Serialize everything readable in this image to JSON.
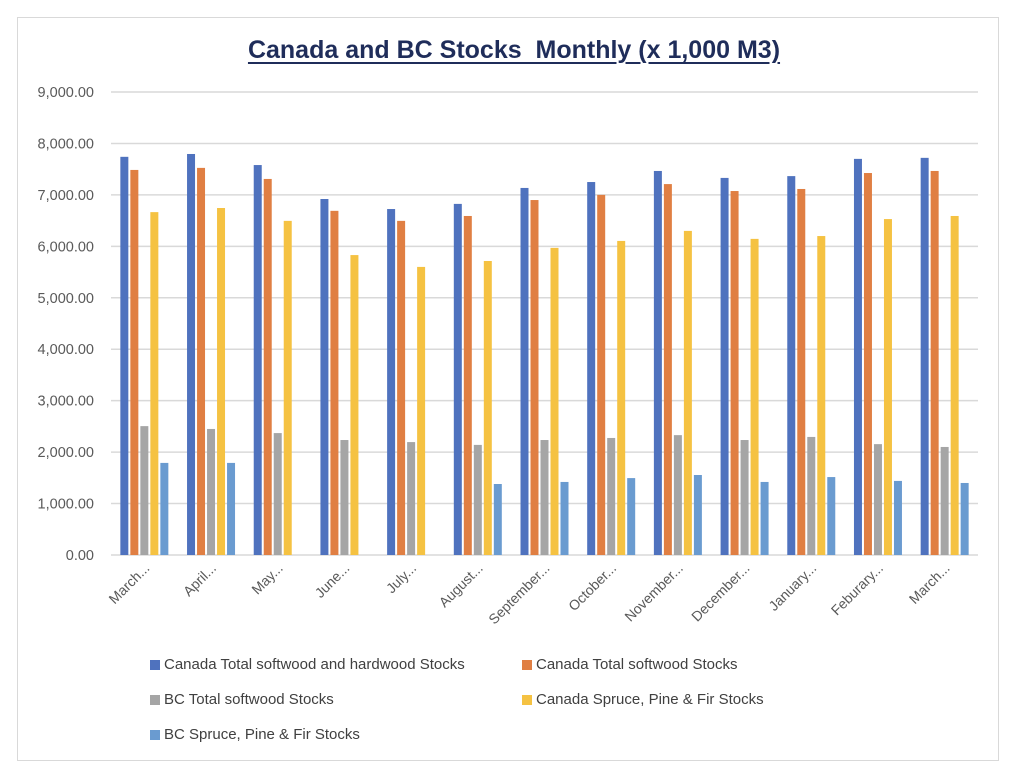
{
  "chart_data": {
    "type": "bar",
    "title": "Canada and BC Stocks  Monthly (x 1,000 M3)",
    "xlabel": "",
    "ylabel": "",
    "ylim": [
      0,
      9000
    ],
    "yticks": [
      0,
      1000,
      2000,
      3000,
      4000,
      5000,
      6000,
      7000,
      8000,
      9000
    ],
    "ytick_labels": [
      "0.00",
      "1,000.00",
      "2,000.00",
      "3,000.00",
      "4,000.00",
      "5,000.00",
      "6,000.00",
      "7,000.00",
      "8,000.00",
      "9,000.00"
    ],
    "grid": true,
    "legend_position": "bottom",
    "categories": [
      "March...",
      "April...",
      "May...",
      "June...",
      "July...",
      "August...",
      "September...",
      "October...",
      "November...",
      "December...",
      "January...",
      "Feburary...",
      "March..."
    ],
    "series": [
      {
        "name": "Canada Total softwood and hardwood Stocks",
        "color": "#4f72be",
        "values": [
          7740,
          7795,
          7580,
          6920,
          6725,
          6825,
          7135,
          7250,
          7465,
          7330,
          7365,
          7700,
          7720
        ]
      },
      {
        "name": "Canada Total softwood Stocks",
        "color": "#e07f43",
        "values": [
          7485,
          7525,
          7310,
          6690,
          6495,
          6590,
          6900,
          7000,
          7210,
          7075,
          7115,
          7425,
          7465
        ]
      },
      {
        "name": "BC Total softwood Stocks",
        "color": "#a5a5a5",
        "values": [
          2505,
          2450,
          2370,
          2235,
          2195,
          2140,
          2235,
          2275,
          2330,
          2235,
          2295,
          2155,
          2100
        ]
      },
      {
        "name": "Canada Spruce, Pine & Fir Stocks",
        "color": "#f5c242",
        "values": [
          6665,
          6745,
          6495,
          5830,
          5600,
          5715,
          5970,
          6105,
          6300,
          6145,
          6200,
          6530,
          6590
        ]
      },
      {
        "name": "BC Spruce, Pine & Fir Stocks",
        "color": "#6a9bd0",
        "values": [
          1790,
          1790,
          null,
          null,
          null,
          1380,
          1420,
          1495,
          1555,
          1420,
          1515,
          1440,
          1400
        ]
      }
    ]
  },
  "colors": {
    "title": "#1f2d5a",
    "grid": "#d9d9d9",
    "axis_text": "#595959"
  }
}
